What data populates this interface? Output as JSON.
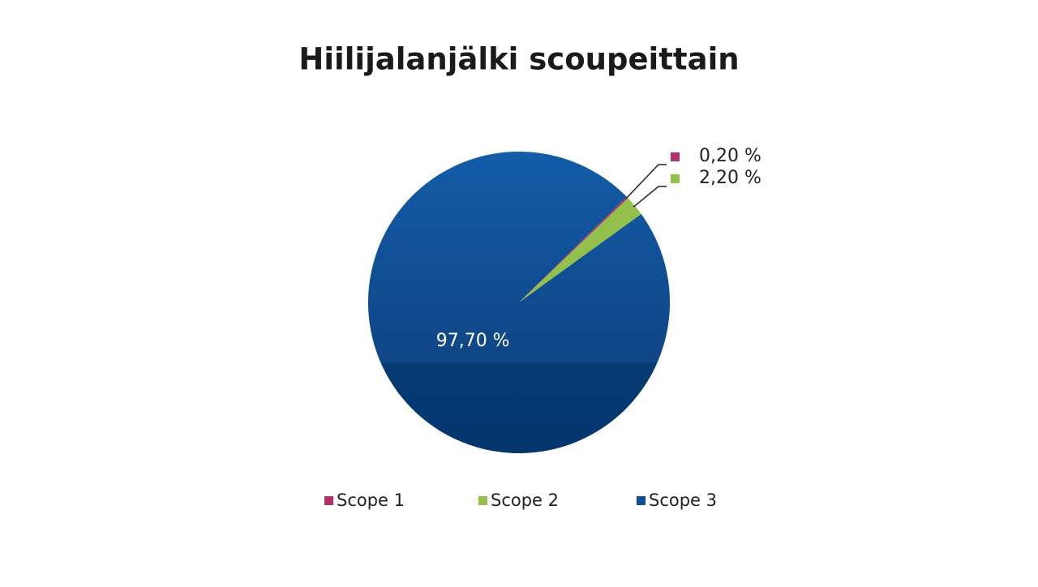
{
  "chart_data": {
    "type": "pie",
    "title": "Hiilijalanjälki scoupeittain",
    "categories": [
      "Scope 1",
      "Scope 2",
      "Scope 3"
    ],
    "values": [
      0.2,
      2.2,
      97.7
    ],
    "value_labels": [
      "0,20 %",
      "2,20 %",
      "97,70 %"
    ],
    "colors": [
      "#b0306a",
      "#92c04a",
      "#0e4f95"
    ],
    "legend": "bottom"
  }
}
